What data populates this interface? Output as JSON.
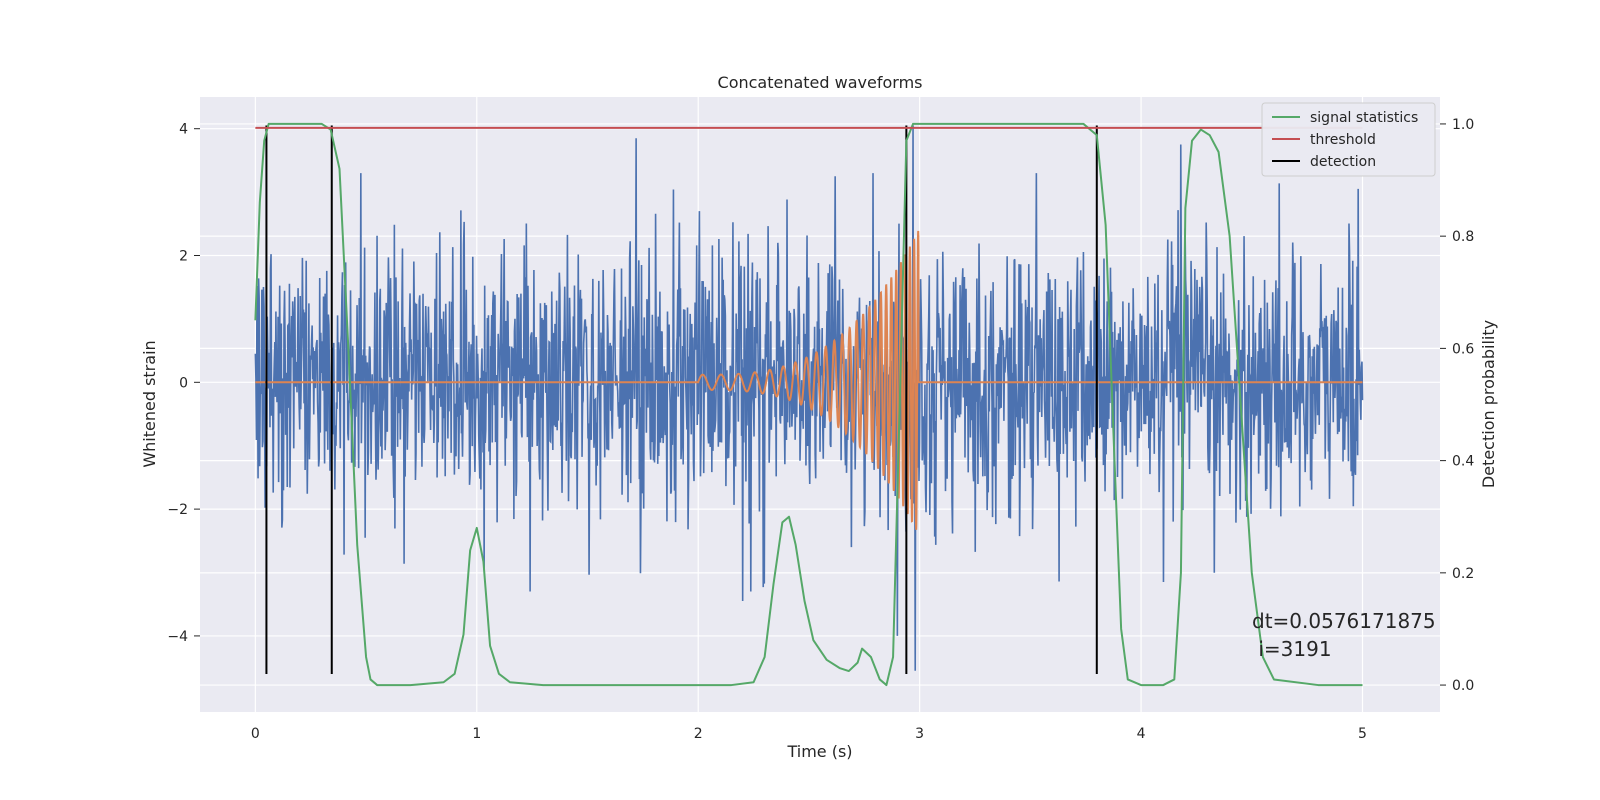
{
  "chart_data": {
    "type": "line",
    "title": "Concatenated waveforms",
    "xlabel": "Time (s)",
    "ylabel": "Whitened strain",
    "y2label": "Detection probability",
    "xlim": [
      -0.25,
      5.35
    ],
    "ylim": [
      -5.2,
      4.5
    ],
    "y2lim": [
      -0.048,
      1.048
    ],
    "x_ticks": [
      0,
      1,
      2,
      3,
      4,
      5
    ],
    "y_ticks": [
      -4,
      -2,
      0,
      2,
      4
    ],
    "y2_ticks": [
      0.0,
      0.2,
      0.4,
      0.6,
      0.8,
      1.0
    ],
    "x_tick_labels": [
      "0",
      "1",
      "2",
      "3",
      "4",
      "5"
    ],
    "y_tick_labels": [
      "−4",
      "−2",
      "0",
      "2",
      "4"
    ],
    "y2_tick_labels": [
      "0.0",
      "0.2",
      "0.4",
      "0.6",
      "0.8",
      "1.0"
    ],
    "grid": true,
    "legend_position": "top-right",
    "colors": {
      "noise": "#4c72b0",
      "waveform": "#dd8452",
      "signal_statistics": "#55a868",
      "threshold": "#c44e52",
      "detection": "#000000",
      "plot_background": "#eaeaf2",
      "grid": "#ffffff"
    },
    "series": [
      {
        "name": "signal statistics",
        "axis": "right",
        "x": [
          0.0,
          0.02,
          0.04,
          0.06,
          0.08,
          0.1,
          0.2,
          0.3,
          0.34,
          0.38,
          0.42,
          0.46,
          0.5,
          0.52,
          0.55,
          0.7,
          0.85,
          0.9,
          0.94,
          0.97,
          1.0,
          1.03,
          1.06,
          1.1,
          1.15,
          1.3,
          2.0,
          2.15,
          2.25,
          2.3,
          2.34,
          2.38,
          2.41,
          2.44,
          2.48,
          2.52,
          2.58,
          2.64,
          2.68,
          2.72,
          2.74,
          2.78,
          2.82,
          2.85,
          2.88,
          2.91,
          2.94,
          2.97,
          3.0,
          3.2,
          3.6,
          3.74,
          3.8,
          3.84,
          3.88,
          3.91,
          3.94,
          4.0,
          4.1,
          4.15,
          4.18,
          4.2,
          4.23,
          4.27,
          4.31,
          4.35,
          4.4,
          4.45,
          4.5,
          4.55,
          4.6,
          4.8,
          5.0
        ],
        "values": [
          0.65,
          0.86,
          0.97,
          1.0,
          1.0,
          1.0,
          1.0,
          1.0,
          0.99,
          0.92,
          0.6,
          0.25,
          0.05,
          0.01,
          0.0,
          0.0,
          0.005,
          0.02,
          0.09,
          0.24,
          0.28,
          0.22,
          0.07,
          0.02,
          0.005,
          0.0,
          0.0,
          0.0,
          0.005,
          0.05,
          0.18,
          0.29,
          0.3,
          0.25,
          0.15,
          0.08,
          0.045,
          0.03,
          0.025,
          0.04,
          0.065,
          0.05,
          0.01,
          0.0,
          0.05,
          0.5,
          0.97,
          1.0,
          1.0,
          1.0,
          1.0,
          1.0,
          0.98,
          0.82,
          0.4,
          0.1,
          0.01,
          0.0,
          0.0,
          0.01,
          0.2,
          0.85,
          0.97,
          0.99,
          0.98,
          0.95,
          0.8,
          0.5,
          0.2,
          0.05,
          0.01,
          0.0,
          0.0
        ]
      },
      {
        "name": "threshold",
        "axis": "right",
        "x": [
          0.0,
          5.0
        ],
        "values": [
          0.993,
          0.993
        ]
      },
      {
        "name": "detection",
        "axis": "left",
        "type": "vertical_lines",
        "x": [
          0.05,
          0.345,
          2.94,
          3.8
        ]
      },
      {
        "axis": "left",
        "type": "noise",
        "x_range": [
          0.0,
          5.0
        ],
        "samples": 2048,
        "sigma": 1.0,
        "highlighted_spikes": [
          {
            "x": 1.72,
            "value": 3.85
          },
          {
            "x": 2.2,
            "value": -3.45
          },
          {
            "x": 2.9,
            "value": -4.0
          },
          {
            "x": 2.97,
            "value": 4.05
          },
          {
            "x": 2.98,
            "value": -4.55
          },
          {
            "x": 4.1,
            "value": -3.15
          },
          {
            "x": 4.18,
            "value": 3.75
          },
          {
            "x": 4.98,
            "value": 3.05
          }
        ]
      },
      {
        "axis": "left",
        "type": "chirp",
        "x": [
          0.0,
          2.0,
          2.995,
          5.0
        ],
        "values": [
          0.0,
          0.0,
          0.0,
          0.0
        ],
        "chirp_start": 2.0,
        "chirp_end": 2.995,
        "start_amplitude": 0.12,
        "end_amplitude": 2.4,
        "start_frequency": 12,
        "end_frequency": 55
      }
    ],
    "annotation": {
      "line1": "dt=0.0576171875",
      "line2": " i=3191",
      "x": 4.5,
      "y": -3.6
    }
  }
}
